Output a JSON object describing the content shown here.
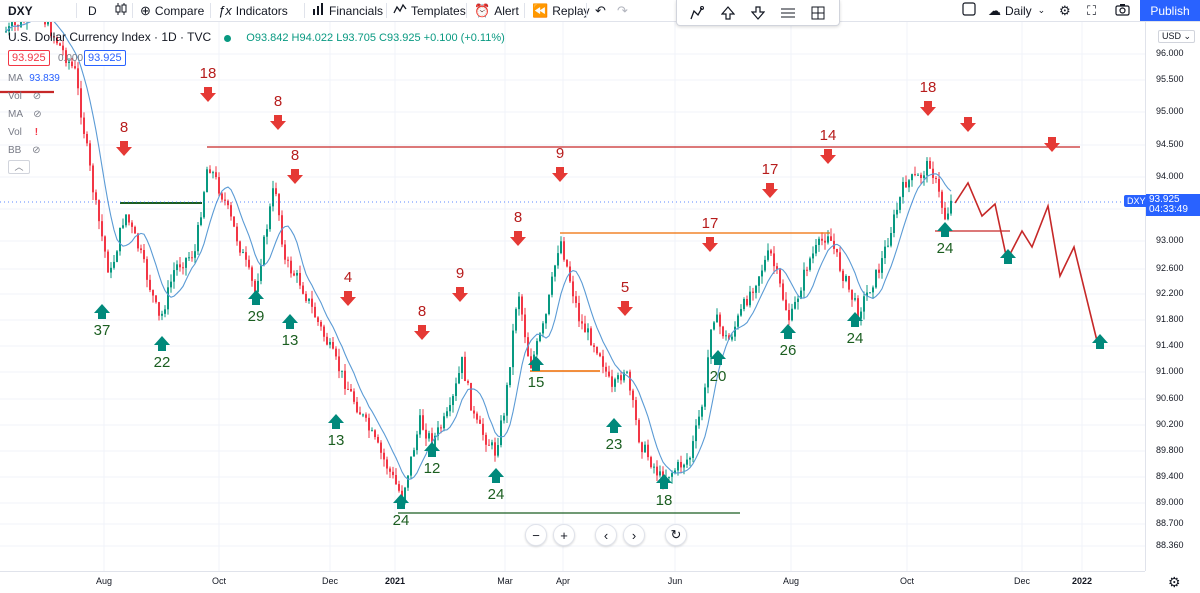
{
  "toolbar": {
    "symbol": "DXY",
    "interval": "D",
    "compare": "Compare",
    "indicators": "Indicators",
    "financials": "Financials",
    "templates": "Templates",
    "alert": "Alert",
    "replay": "Replay",
    "timeframe": "Daily",
    "publish": "Publish"
  },
  "legend": {
    "title": "U.S. Dollar Currency Index · 1D · TVC",
    "ohlc": "O93.842 H94.022 L93.705 C93.925 +0.100 (+0.11%)",
    "price_red": "93.925",
    "price_gray": "0.000",
    "price_blue": "93.925",
    "ma_label": "MA",
    "ma_value": "93.839",
    "rows": [
      "Vol",
      "MA",
      "Vol",
      "BB"
    ]
  },
  "price_axis": {
    "currency": "USD",
    "ticks": [
      "96.000",
      "95.500",
      "95.000",
      "94.500",
      "94.000",
      "93.500",
      "93.000",
      "92.600",
      "92.200",
      "91.800",
      "91.400",
      "91.000",
      "90.600",
      "90.200",
      "89.800",
      "89.400",
      "89.000",
      "88.700",
      "88.360"
    ],
    "current_price": "93.925",
    "countdown": "04:33:49",
    "symbol_tag": "DXY"
  },
  "time_axis": {
    "ticks": [
      {
        "label": "Aug",
        "bold": false
      },
      {
        "label": "Oct",
        "bold": false
      },
      {
        "label": "Dec",
        "bold": false
      },
      {
        "label": "2021",
        "bold": true
      },
      {
        "label": "Mar",
        "bold": false
      },
      {
        "label": "Apr",
        "bold": false
      },
      {
        "label": "Jun",
        "bold": false
      },
      {
        "label": "Aug",
        "bold": false
      },
      {
        "label": "Oct",
        "bold": false
      },
      {
        "label": "Dec",
        "bold": false
      },
      {
        "label": "2022",
        "bold": true
      }
    ]
  },
  "annotations": {
    "down_labels": [
      "8",
      "18",
      "8",
      "8",
      "4",
      "8",
      "9",
      "8",
      "9",
      "5",
      "17",
      "17",
      "14",
      "18"
    ],
    "up_labels": [
      "37",
      "22",
      "29",
      "13",
      "13",
      "24",
      "12",
      "24",
      "15",
      "23",
      "18",
      "20",
      "26",
      "24",
      "24"
    ]
  },
  "colors": {
    "up_candle": "#089981",
    "down_candle": "#f23645",
    "ma_line": "#5b9bd5",
    "resistance": "#c62828",
    "support_green": "#1b5e20",
    "orange_line": "#ef6c00",
    "accent": "#2962ff",
    "arrow_red": "#e53935",
    "arrow_green": "#00897b"
  }
}
